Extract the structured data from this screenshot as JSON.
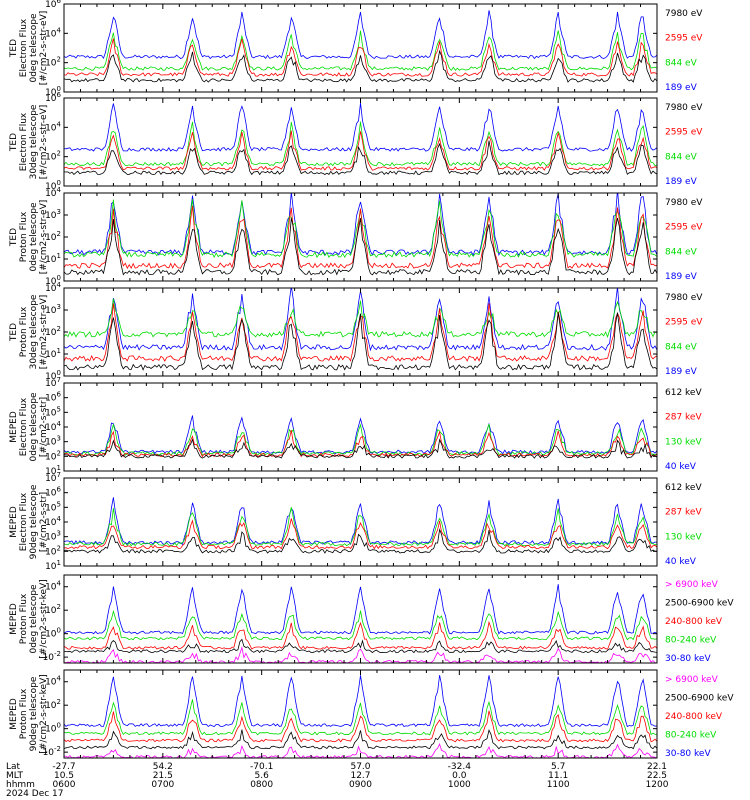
{
  "chart_data": [
    {
      "type": "line",
      "instrument": "TED",
      "ylabel": [
        "TED",
        "Electron Flux",
        "0deg telescope",
        "[#/cm2-s-str-eV]"
      ],
      "yticks": [
        "10^6",
        "10^4",
        "10^2",
        "10^0"
      ],
      "ylim_exp": [
        0,
        6
      ],
      "log_y": true,
      "series": [
        {
          "name": "7980 eV",
          "color": "#000000",
          "base_exp": 0.8,
          "peak_exp": 2.6
        },
        {
          "name": "2595 eV",
          "color": "#ff0000",
          "base_exp": 1.2,
          "peak_exp": 3.3
        },
        {
          "name": "844 eV",
          "color": "#00dd00",
          "base_exp": 1.6,
          "peak_exp": 3.9
        },
        {
          "name": "189 eV",
          "color": "#0000ff",
          "base_exp": 2.4,
          "peak_exp": 5.2
        }
      ]
    },
    {
      "type": "line",
      "instrument": "TED",
      "ylabel": [
        "TED",
        "Electron Flux",
        "30deg telescope",
        "[#/cm2-s-str-eV]"
      ],
      "yticks": [
        "10^6",
        "10^4",
        "10^2",
        "10^0"
      ],
      "ylim_exp": [
        0,
        6
      ],
      "log_y": true,
      "series": [
        {
          "name": "7980 eV",
          "color": "#000000",
          "base_exp": 0.9,
          "peak_exp": 2.7
        },
        {
          "name": "2595 eV",
          "color": "#ff0000",
          "base_exp": 1.2,
          "peak_exp": 3.4
        },
        {
          "name": "844 eV",
          "color": "#00dd00",
          "base_exp": 1.5,
          "peak_exp": 4.0
        },
        {
          "name": "189 eV",
          "color": "#0000ff",
          "base_exp": 2.5,
          "peak_exp": 5.4
        }
      ]
    },
    {
      "type": "line",
      "instrument": "TED",
      "ylabel": [
        "TED",
        "Proton Flux",
        "0deg telescope",
        "[#/cm2-s-str-eV]"
      ],
      "yticks": [
        "10^4",
        "10^3",
        "10^2",
        "10^1",
        "10^0"
      ],
      "ylim_exp": [
        0,
        4
      ],
      "log_y": true,
      "series": [
        {
          "name": "7980 eV",
          "color": "#000000",
          "base_exp": 0.4,
          "peak_exp": 2.6
        },
        {
          "name": "2595 eV",
          "color": "#ff0000",
          "base_exp": 0.7,
          "peak_exp": 3.0
        },
        {
          "name": "844 eV",
          "color": "#00dd00",
          "base_exp": 1.2,
          "peak_exp": 3.3
        },
        {
          "name": "189 eV",
          "color": "#0000ff",
          "base_exp": 1.3,
          "peak_exp": 3.8
        }
      ]
    },
    {
      "type": "line",
      "instrument": "TED",
      "ylabel": [
        "TED",
        "Proton Flux",
        "30deg telescope",
        "[#/cm2-s-str-eV]"
      ],
      "yticks": [
        "10^4",
        "10^3",
        "10^2",
        "10^1",
        "10^0"
      ],
      "ylim_exp": [
        0,
        4
      ],
      "log_y": true,
      "series": [
        {
          "name": "7980 eV",
          "color": "#000000",
          "base_exp": 0.4,
          "peak_exp": 2.5
        },
        {
          "name": "2595 eV",
          "color": "#ff0000",
          "base_exp": 0.8,
          "peak_exp": 2.9
        },
        {
          "name": "844 eV",
          "color": "#00dd00",
          "base_exp": 1.9,
          "peak_exp": 3.1
        },
        {
          "name": "189 eV",
          "color": "#0000ff",
          "base_exp": 1.3,
          "peak_exp": 3.7
        }
      ]
    },
    {
      "type": "line",
      "instrument": "MEPED",
      "ylabel": [
        "MEPED",
        "Electron Flux",
        "0deg telescope",
        "[#/cm2-s-str]"
      ],
      "yticks": [
        "10^7",
        "10^6",
        "10^5",
        "10^4",
        "10^3",
        "10^2",
        "10^1"
      ],
      "ylim_exp": [
        1,
        7
      ],
      "log_y": true,
      "series": [
        {
          "name": "612 keV",
          "color": "#000000",
          "base_exp": 2.0,
          "peak_exp": 2.8
        },
        {
          "name": "287 keV",
          "color": "#ff0000",
          "base_exp": 2.1,
          "peak_exp": 3.4
        },
        {
          "name": "130 keV",
          "color": "#00dd00",
          "base_exp": 2.2,
          "peak_exp": 3.9
        },
        {
          "name": "40 keV",
          "color": "#0000ff",
          "base_exp": 2.3,
          "peak_exp": 4.5
        }
      ]
    },
    {
      "type": "line",
      "instrument": "MEPED",
      "ylabel": [
        "MEPED",
        "Electron Flux",
        "90deg telescope",
        "[#/cm2-s-str]"
      ],
      "yticks": [
        "10^7",
        "10^6",
        "10^5",
        "10^4",
        "10^3",
        "10^2",
        "10^1"
      ],
      "ylim_exp": [
        1,
        7
      ],
      "log_y": true,
      "series": [
        {
          "name": "612 keV",
          "color": "#000000",
          "base_exp": 2.0,
          "peak_exp": 3.1
        },
        {
          "name": "287 keV",
          "color": "#ff0000",
          "base_exp": 2.3,
          "peak_exp": 4.0
        },
        {
          "name": "130 keV",
          "color": "#00dd00",
          "base_exp": 2.5,
          "peak_exp": 4.6
        },
        {
          "name": "40 keV",
          "color": "#0000ff",
          "base_exp": 2.6,
          "peak_exp": 5.3
        }
      ]
    },
    {
      "type": "line",
      "instrument": "MEPED",
      "ylabel": [
        "MEPED",
        "Proton Flux",
        "0deg telescope",
        "[#/cm2-s-str-keV]"
      ],
      "yticks": [
        "10^4",
        "10^2",
        "10^0",
        "10^-2"
      ],
      "ylim_exp": [
        -2.5,
        5
      ],
      "log_y": true,
      "series": [
        {
          "name": "> 6900 keV",
          "color": "#ff00ff",
          "base_exp": -2.4,
          "peak_exp": -1.6
        },
        {
          "name": "2500-6900 keV",
          "color": "#000000",
          "base_exp": -1.5,
          "peak_exp": -0.8
        },
        {
          "name": "240-800 keV",
          "color": "#ff0000",
          "base_exp": -1.2,
          "peak_exp": 0.6
        },
        {
          "name": "80-240 keV",
          "color": "#00dd00",
          "base_exp": -0.4,
          "peak_exp": 1.7
        },
        {
          "name": "30-80 keV",
          "color": "#0000ff",
          "base_exp": 0.1,
          "peak_exp": 3.8
        }
      ]
    },
    {
      "type": "line",
      "instrument": "MEPED",
      "ylabel": [
        "MEPED",
        "Proton Flux",
        "90deg telescope",
        "[#/cm2-s-str-keV]"
      ],
      "yticks": [
        "10^4",
        "10^2",
        "10^0",
        "10^-2"
      ],
      "ylim_exp": [
        -2.5,
        5
      ],
      "log_y": true,
      "series": [
        {
          "name": "> 6900 keV",
          "color": "#ff00ff",
          "base_exp": -2.4,
          "peak_exp": -1.7
        },
        {
          "name": "2500-6900 keV",
          "color": "#000000",
          "base_exp": -1.6,
          "peak_exp": -0.5
        },
        {
          "name": "240-800 keV",
          "color": "#ff0000",
          "base_exp": -1.0,
          "peak_exp": 1.1
        },
        {
          "name": "80-240 keV",
          "color": "#00dd00",
          "base_exp": -0.4,
          "peak_exp": 2.1
        },
        {
          "name": "30-80 keV",
          "color": "#0000ff",
          "base_exp": 0.3,
          "peak_exp": 4.4
        }
      ]
    }
  ],
  "xaxis": {
    "row_labels": [
      "Lat",
      "MLT",
      "hhmm",
      "2024 Dec 17"
    ],
    "ticks": [
      {
        "lat": "-27.7",
        "mlt": "10.5",
        "hhmm": "0600"
      },
      {
        "lat": "54.2",
        "mlt": "21.5",
        "hhmm": "0700"
      },
      {
        "lat": "-70.1",
        "mlt": "5.6",
        "hhmm": "0800"
      },
      {
        "lat": "57.0",
        "mlt": "12.7",
        "hhmm": "0900"
      },
      {
        "lat": "-32.4",
        "mlt": "0.0",
        "hhmm": "1000"
      },
      {
        "lat": "5.7",
        "mlt": "11.1",
        "hhmm": "1100"
      },
      {
        "lat": "22.1",
        "mlt": "22.5",
        "hhmm": "1200"
      }
    ],
    "time_range_hours": [
      6,
      12
    ],
    "passes_hours": [
      6.5,
      7.3,
      7.8,
      8.3,
      9.0,
      9.8,
      10.3,
      11.0,
      11.6,
      11.85
    ]
  }
}
